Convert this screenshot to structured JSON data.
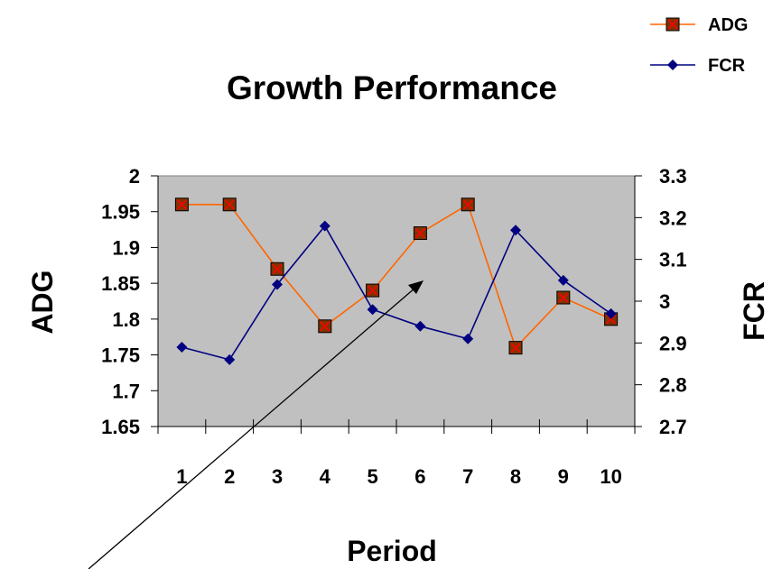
{
  "chart_data": {
    "type": "line",
    "title": "Growth Performance",
    "xlabel": "Period",
    "ylabel": "ADG",
    "y2label": "FCR",
    "categories": [
      "1",
      "2",
      "3",
      "4",
      "5",
      "6",
      "7",
      "8",
      "9",
      "10"
    ],
    "y_ticks": [
      "2",
      "1.95",
      "1.9",
      "1.85",
      "1.8",
      "1.75",
      "1.7",
      "1.65"
    ],
    "y2_ticks": [
      "3.3",
      "3.2",
      "3.1",
      "3",
      "2.9",
      "2.8",
      "2.7"
    ],
    "ylim": [
      1.65,
      2.0
    ],
    "y2lim": [
      2.7,
      3.3
    ],
    "grid": false,
    "plot_background": "#c0c0c0",
    "legend_position": "top-right",
    "series": [
      {
        "name": "ADG",
        "axis": "left",
        "color": "#ff6600",
        "marker": "square-x",
        "marker_fill": "#7f3300",
        "marker_x_color": "#ff0000",
        "values": [
          1.96,
          1.96,
          1.87,
          1.79,
          1.84,
          1.92,
          1.96,
          1.76,
          1.83,
          1.8
        ]
      },
      {
        "name": "FCR",
        "axis": "right",
        "color": "#000080",
        "marker": "diamond",
        "values": [
          2.89,
          2.86,
          3.04,
          3.18,
          2.98,
          2.94,
          2.91,
          3.17,
          3.05,
          2.97
        ]
      }
    ],
    "annotation": {
      "type": "arrow",
      "color": "#000000"
    }
  }
}
